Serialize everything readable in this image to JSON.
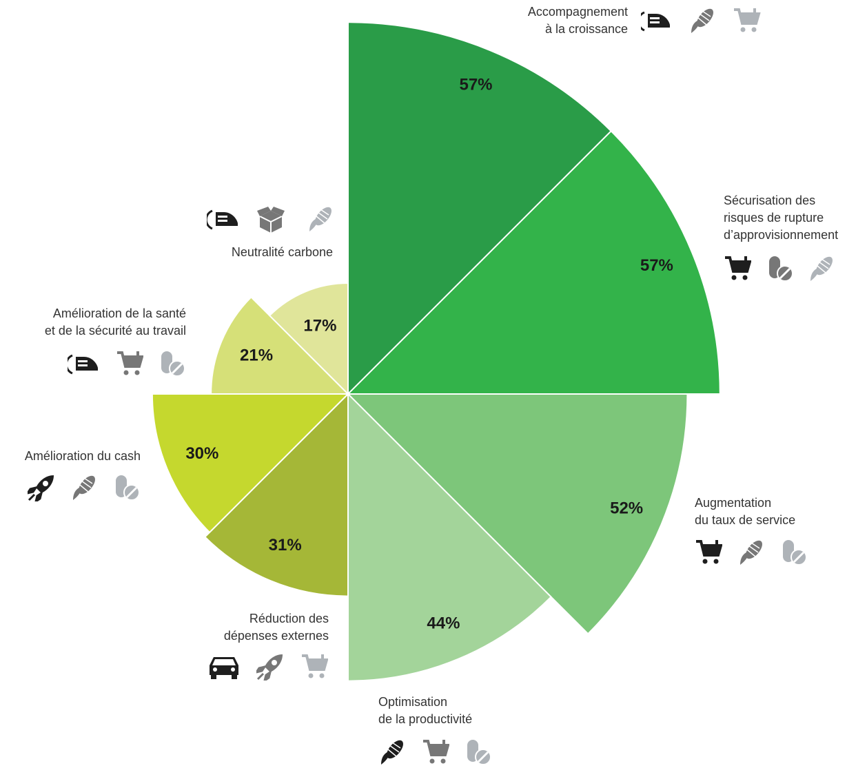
{
  "chart_data": {
    "type": "polar",
    "categories": [
      [
        "Accompagnement",
        "à la croissance"
      ],
      [
        "Sécurisation des",
        "risques de rupture",
        "d’approvisionnement"
      ],
      [
        "Augmentation",
        "du taux de service"
      ],
      [
        "Optimisation",
        "de la productivité"
      ],
      [
        "Réduction des",
        "dépenses externes"
      ],
      [
        "Amélioration du cash"
      ],
      [
        "Amélioration de la santé",
        "et de la sécurité au travail"
      ],
      [
        "Neutralité carbone"
      ]
    ],
    "values": [
      57,
      57,
      52,
      44,
      31,
      30,
      21,
      17
    ],
    "value_labels": [
      "57%",
      "57%",
      "52%",
      "44%",
      "31%",
      "30%",
      "21%",
      "17%"
    ],
    "colors": [
      "#2a9c48",
      "#33b34a",
      "#7dc67a",
      "#a3d49a",
      "#a5b737",
      "#c5d82e",
      "#d6e078",
      "#e0e59a"
    ]
  }
}
